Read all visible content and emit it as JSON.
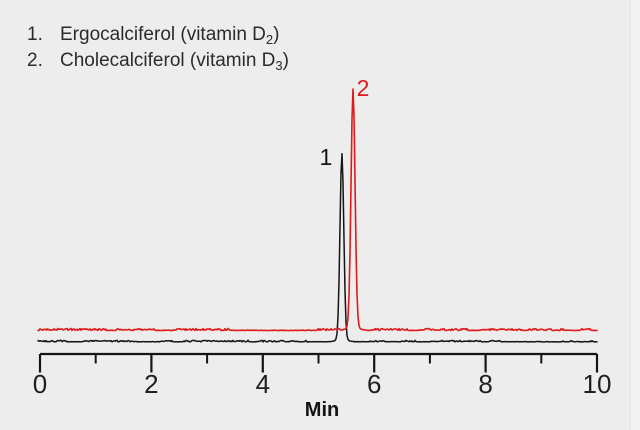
{
  "legend": {
    "items": [
      {
        "number": "1.",
        "text": "Ergocalciferol (vitamin D",
        "sub": "2",
        "close": ")"
      },
      {
        "number": "2.",
        "text": "Cholecalciferol (vitamin D",
        "sub": "3",
        "close": ")"
      }
    ]
  },
  "colors": {
    "background": "#ededed",
    "trace_black": "#151515",
    "trace_red": "#dd1b18",
    "text": "#2b2b2b"
  },
  "chart_data": {
    "type": "line",
    "title": "",
    "xlabel": "Min",
    "ylabel": "",
    "xlim": [
      0,
      10
    ],
    "x_major_ticks": [
      0,
      2,
      4,
      6,
      8,
      10
    ],
    "x_minor_ticks": [
      1,
      3,
      5,
      7,
      9
    ],
    "grid": false,
    "legend_position": "top-left",
    "series": [
      {
        "name": "Ergocalciferol (vitamin D2)",
        "peak_label": "1",
        "color": "#151515",
        "retention_min": 5.42,
        "peak_height_rel": 0.78,
        "baseline_rel": 0.0,
        "peak_sigma_min": 0.034
      },
      {
        "name": "Cholecalciferol (vitamin D3)",
        "peak_label": "2",
        "color": "#dd1b18",
        "retention_min": 5.62,
        "peak_height_rel": 1.0,
        "baseline_rel": 0.048,
        "peak_sigma_min": 0.036
      }
    ]
  }
}
